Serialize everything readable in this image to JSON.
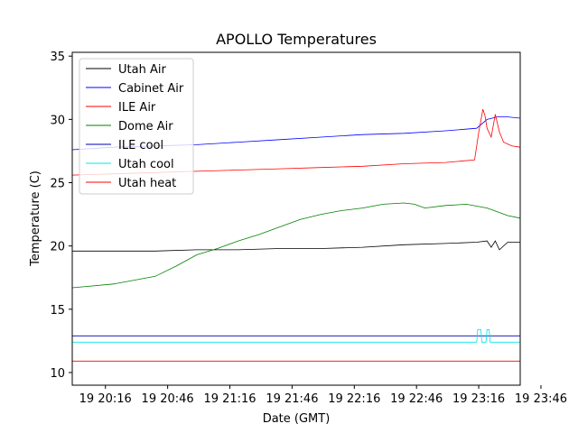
{
  "chart_data": {
    "type": "line",
    "title": "APOLLO Temperatures",
    "xlabel": "Date (GMT)",
    "ylabel": "Temperature (C)",
    "xlim": [
      0,
      216
    ],
    "ylim": [
      9,
      35.3
    ],
    "x_unit": "minutes after 19 20:00 GMT",
    "x_ticks": [
      {
        "value": 16,
        "label": "19 20:16"
      },
      {
        "value": 46,
        "label": "19 20:46"
      },
      {
        "value": 76,
        "label": "19 21:16"
      },
      {
        "value": 106,
        "label": "19 21:46"
      },
      {
        "value": 136,
        "label": "19 22:16"
      },
      {
        "value": 166,
        "label": "19 22:46"
      },
      {
        "value": 196,
        "label": "19 23:16"
      },
      {
        "value": 226,
        "label": "19 23:46"
      }
    ],
    "y_ticks": [
      {
        "value": 10,
        "label": "10"
      },
      {
        "value": 15,
        "label": "15"
      },
      {
        "value": 20,
        "label": "20"
      },
      {
        "value": 25,
        "label": "25"
      },
      {
        "value": 30,
        "label": "30"
      },
      {
        "value": 35,
        "label": "35"
      }
    ],
    "legend_position": "top-left",
    "series": [
      {
        "name": "Utah Air",
        "color": "#000000",
        "x": [
          0,
          20,
          40,
          60,
          80,
          100,
          120,
          140,
          160,
          180,
          195,
          200,
          202,
          204,
          206,
          210,
          216
        ],
        "y": [
          19.6,
          19.6,
          19.6,
          19.7,
          19.7,
          19.8,
          19.8,
          19.9,
          20.1,
          20.2,
          20.3,
          20.4,
          19.9,
          20.4,
          19.7,
          20.3,
          20.3
        ]
      },
      {
        "name": "Cabinet Air",
        "color": "#0000ff",
        "x": [
          0,
          20,
          40,
          60,
          80,
          100,
          120,
          140,
          160,
          180,
          195,
          200,
          205,
          210,
          216
        ],
        "y": [
          27.6,
          27.8,
          27.9,
          28.0,
          28.2,
          28.4,
          28.6,
          28.8,
          28.9,
          29.1,
          29.3,
          30.0,
          30.2,
          30.2,
          30.1
        ]
      },
      {
        "name": "ILE Air",
        "color": "#ff0000",
        "x": [
          0,
          20,
          40,
          60,
          80,
          100,
          120,
          140,
          160,
          180,
          194,
          196,
          198,
          199,
          200,
          202,
          204,
          206,
          208,
          212,
          216
        ],
        "y": [
          25.6,
          25.7,
          25.8,
          25.9,
          26.0,
          26.1,
          26.2,
          26.3,
          26.5,
          26.6,
          26.8,
          29.0,
          30.8,
          30.3,
          29.3,
          28.6,
          30.4,
          29.0,
          28.2,
          27.9,
          27.8
        ]
      },
      {
        "name": "Dome Air",
        "color": "#008000",
        "x": [
          0,
          20,
          40,
          50,
          60,
          70,
          80,
          90,
          100,
          110,
          120,
          130,
          140,
          150,
          160,
          165,
          170,
          180,
          190,
          200,
          205,
          210,
          216
        ],
        "y": [
          16.7,
          17.0,
          17.6,
          18.4,
          19.3,
          19.8,
          20.4,
          20.9,
          21.5,
          22.1,
          22.5,
          22.8,
          23.0,
          23.3,
          23.4,
          23.3,
          23.0,
          23.2,
          23.3,
          23.0,
          22.7,
          22.4,
          22.2
        ]
      },
      {
        "name": "ILE cool",
        "color": "#0000b0",
        "x": [
          0,
          216
        ],
        "y": [
          12.9,
          12.9
        ]
      },
      {
        "name": "Utah cool",
        "color": "#00e5ee",
        "x": [
          0,
          195,
          195.5,
          197,
          197.5,
          199.5,
          200,
          201,
          201.5,
          216
        ],
        "y": [
          12.4,
          12.4,
          13.4,
          13.4,
          12.4,
          12.4,
          13.4,
          13.4,
          12.4,
          12.4
        ]
      },
      {
        "name": "Utah heat",
        "color": "#ff0000",
        "x": [
          0,
          216
        ],
        "y": [
          10.9,
          10.9
        ]
      }
    ]
  }
}
